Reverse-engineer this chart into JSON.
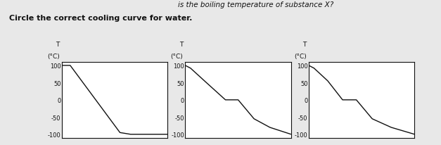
{
  "title_line1": "is the boiling temperature of substance X?",
  "title_line2": "Circle the correct cooling curve for water.",
  "background_color": "#e8e8e8",
  "charts": [
    {
      "ylabel_top": "T",
      "ylabel_unit": "(°C)",
      "yticks": [
        100,
        50,
        0,
        -50,
        -100
      ],
      "curve_x": [
        0.0,
        0.08,
        0.55,
        0.65,
        1.0
      ],
      "curve_y": [
        100,
        100,
        -95,
        -100,
        -100
      ]
    },
    {
      "ylabel_top": "T",
      "ylabel_unit": "(°C)",
      "yticks": [
        100,
        50,
        0,
        -50,
        -100
      ],
      "curve_x": [
        0.0,
        0.05,
        0.2,
        0.38,
        0.5,
        0.65,
        0.8,
        1.0
      ],
      "curve_y": [
        100,
        92,
        50,
        0,
        0,
        -55,
        -80,
        -100
      ]
    },
    {
      "ylabel_top": "T",
      "ylabel_unit": "(°C)",
      "yticks": [
        100,
        50,
        0,
        -50,
        -100
      ],
      "curve_x": [
        0.0,
        0.05,
        0.18,
        0.32,
        0.45,
        0.6,
        0.78,
        1.0
      ],
      "curve_y": [
        100,
        92,
        55,
        0,
        0,
        -55,
        -80,
        -100
      ]
    }
  ],
  "line_color": "#111111",
  "text_color": "#111111",
  "title_fontsize": 7.5,
  "label_fontsize": 6.5,
  "tick_fontsize": 6.0
}
